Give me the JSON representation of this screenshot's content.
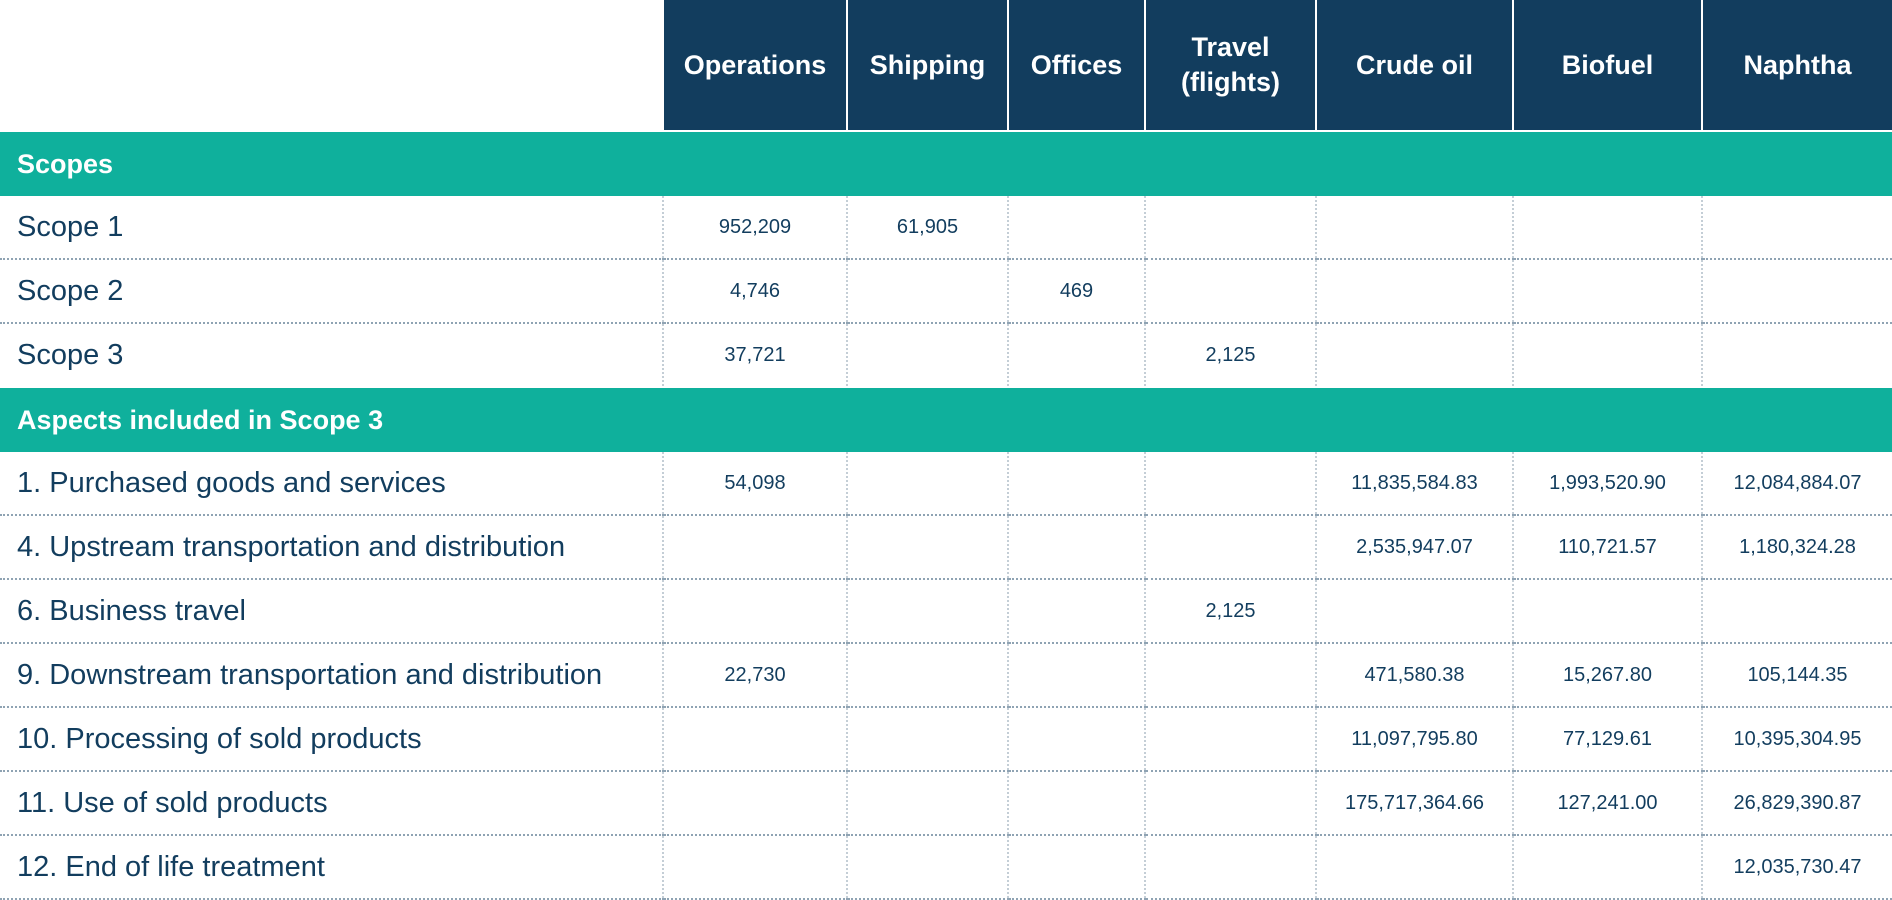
{
  "columns": [
    "Operations",
    "Shipping",
    "Offices",
    "Travel\n(flights)",
    "Crude oil",
    "Biofuel",
    "Naphtha"
  ],
  "sections": [
    {
      "title": "Scopes",
      "rows": [
        {
          "label": "Scope 1",
          "values": [
            "952,209",
            "61,905",
            "",
            "",
            "",
            "",
            ""
          ]
        },
        {
          "label": "Scope 2",
          "values": [
            "4,746",
            "",
            "469",
            "",
            "",
            "",
            ""
          ]
        },
        {
          "label": "Scope 3",
          "values": [
            "37,721",
            "",
            "",
            "2,125",
            "",
            "",
            ""
          ]
        }
      ]
    },
    {
      "title": "Aspects included in Scope 3",
      "rows": [
        {
          "label": "1. Purchased goods and services",
          "values": [
            "54,098",
            "",
            "",
            "",
            "11,835,584.83",
            "1,993,520.90",
            "12,084,884.07"
          ]
        },
        {
          "label": "4. Upstream transportation and distribution",
          "values": [
            "",
            "",
            "",
            "",
            "2,535,947.07",
            "110,721.57",
            "1,180,324.28"
          ]
        },
        {
          "label": "6. Business travel",
          "values": [
            "",
            "",
            "",
            "2,125",
            "",
            "",
            ""
          ]
        },
        {
          "label": "9. Downstream transportation and distribution",
          "values": [
            "22,730",
            "",
            "",
            "",
            "471,580.38",
            "15,267.80",
            "105,144.35"
          ]
        },
        {
          "label": "10. Processing of sold products",
          "values": [
            "",
            "",
            "",
            "",
            "11,097,795.80",
            "77,129.61",
            "10,395,304.95"
          ]
        },
        {
          "label": "11. Use of sold products",
          "values": [
            "",
            "",
            "",
            "",
            "175,717,364.66",
            "127,241.00",
            "26,829,390.87"
          ]
        },
        {
          "label": "12. End of life treatment",
          "values": [
            "",
            "",
            "",
            "",
            "",
            "",
            "12,035,730.47"
          ]
        }
      ]
    }
  ]
}
